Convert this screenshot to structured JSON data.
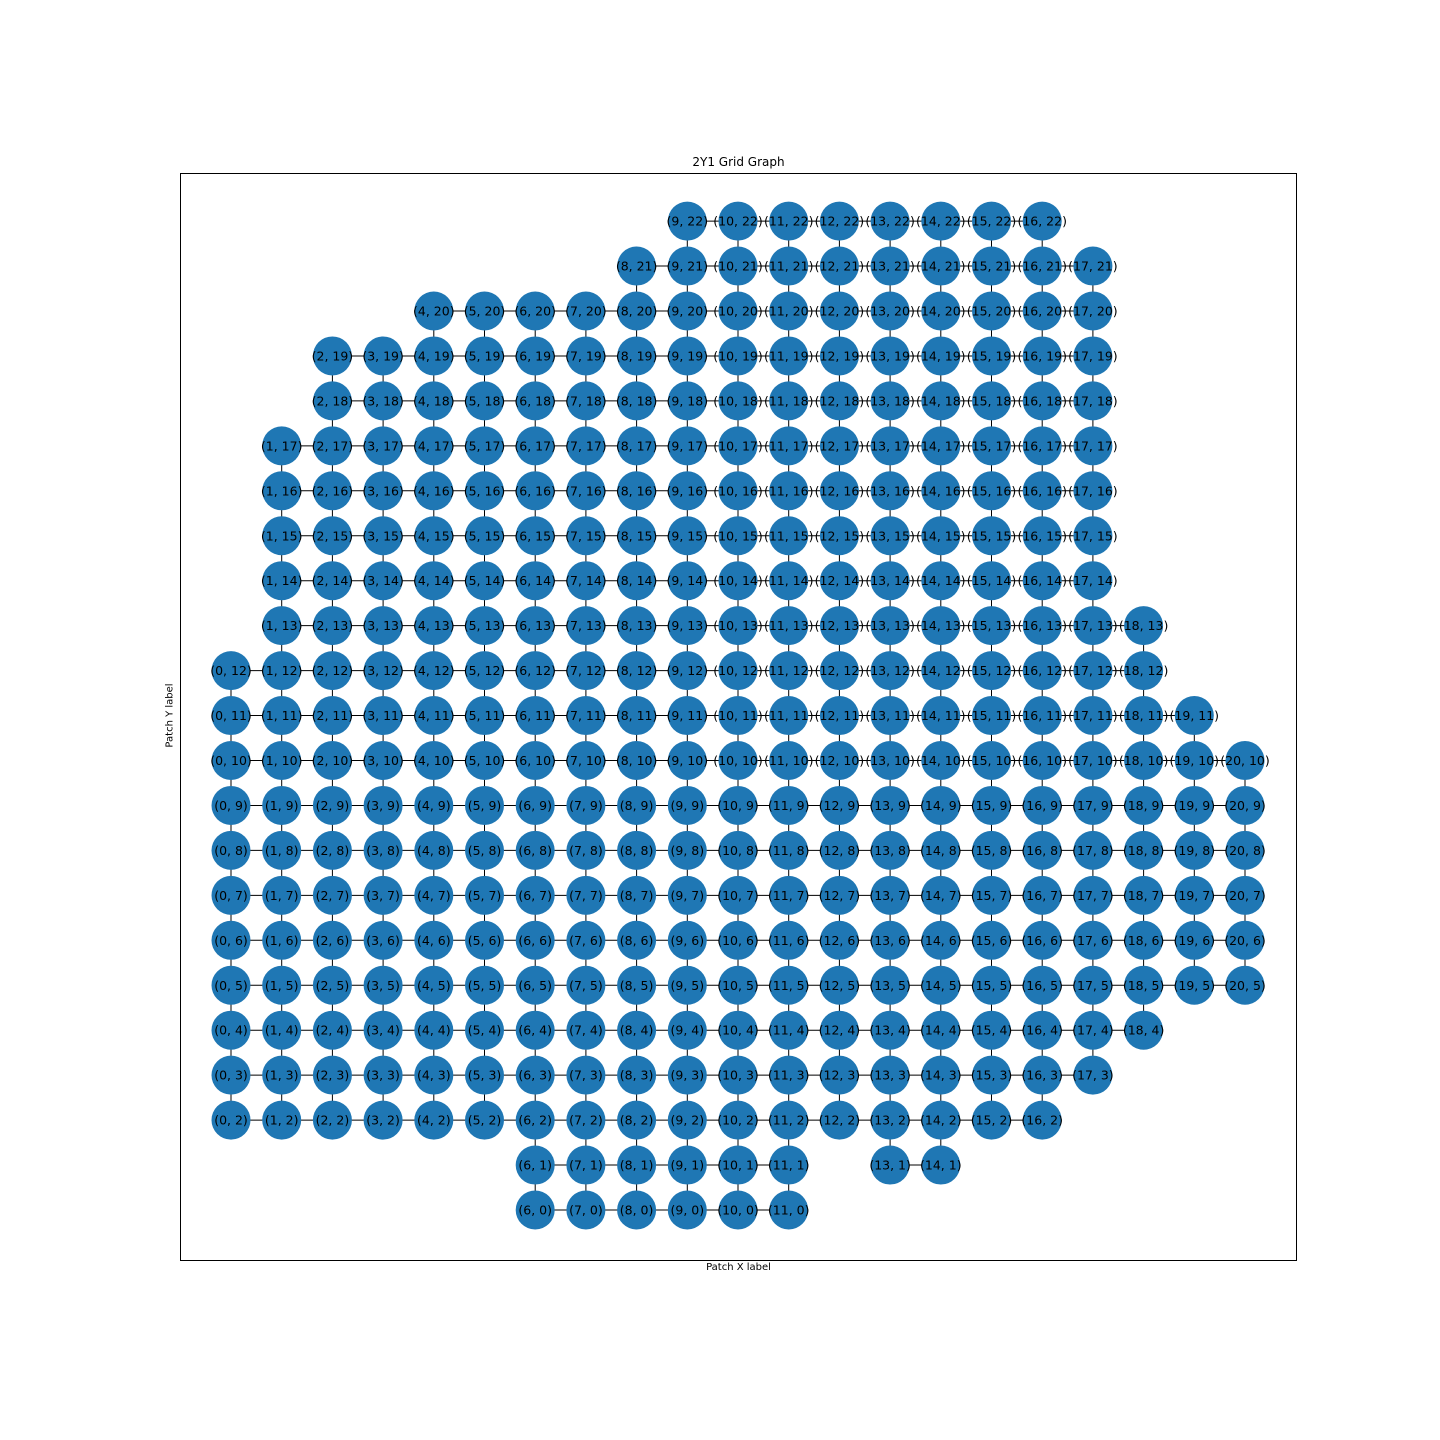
{
  "title": "2Y1 Grid Graph",
  "xlabel": "Patch X label",
  "ylabel": "Patch Y label",
  "colors": {
    "node": "#1f77b4",
    "edge": "#000000",
    "frame": "#000000"
  },
  "chart_data": {
    "type": "grid-graph",
    "title": "2Y1 Grid Graph",
    "xlabel": "Patch X label",
    "ylabel": "Patch Y label",
    "grid": false,
    "edges": "4-neighbour grid adjacency between existing nodes",
    "columns": [
      {
        "x": 0,
        "y": [
          [
            2,
            12
          ]
        ]
      },
      {
        "x": 1,
        "y": [
          [
            2,
            17
          ]
        ]
      },
      {
        "x": 2,
        "y": [
          [
            2,
            19
          ]
        ]
      },
      {
        "x": 3,
        "y": [
          [
            2,
            19
          ]
        ]
      },
      {
        "x": 4,
        "y": [
          [
            2,
            20
          ]
        ]
      },
      {
        "x": 5,
        "y": [
          [
            2,
            20
          ]
        ]
      },
      {
        "x": 6,
        "y": [
          [
            0,
            20
          ]
        ]
      },
      {
        "x": 7,
        "y": [
          [
            0,
            20
          ]
        ]
      },
      {
        "x": 8,
        "y": [
          [
            0,
            21
          ]
        ]
      },
      {
        "x": 9,
        "y": [
          [
            0,
            22
          ]
        ]
      },
      {
        "x": 10,
        "y": [
          [
            0,
            22
          ]
        ]
      },
      {
        "x": 11,
        "y": [
          [
            0,
            22
          ]
        ]
      },
      {
        "x": 12,
        "y": [
          [
            2,
            22
          ]
        ]
      },
      {
        "x": 13,
        "y": [
          [
            1,
            22
          ]
        ]
      },
      {
        "x": 14,
        "y": [
          [
            1,
            22
          ]
        ]
      },
      {
        "x": 15,
        "y": [
          [
            2,
            22
          ]
        ]
      },
      {
        "x": 16,
        "y": [
          [
            2,
            22
          ]
        ]
      },
      {
        "x": 17,
        "y": [
          [
            3,
            21
          ]
        ]
      },
      {
        "x": 18,
        "y": [
          [
            4,
            13
          ]
        ]
      },
      {
        "x": 19,
        "y": [
          [
            5,
            11
          ]
        ]
      },
      {
        "x": 20,
        "y": [
          [
            5,
            10
          ]
        ]
      }
    ]
  }
}
